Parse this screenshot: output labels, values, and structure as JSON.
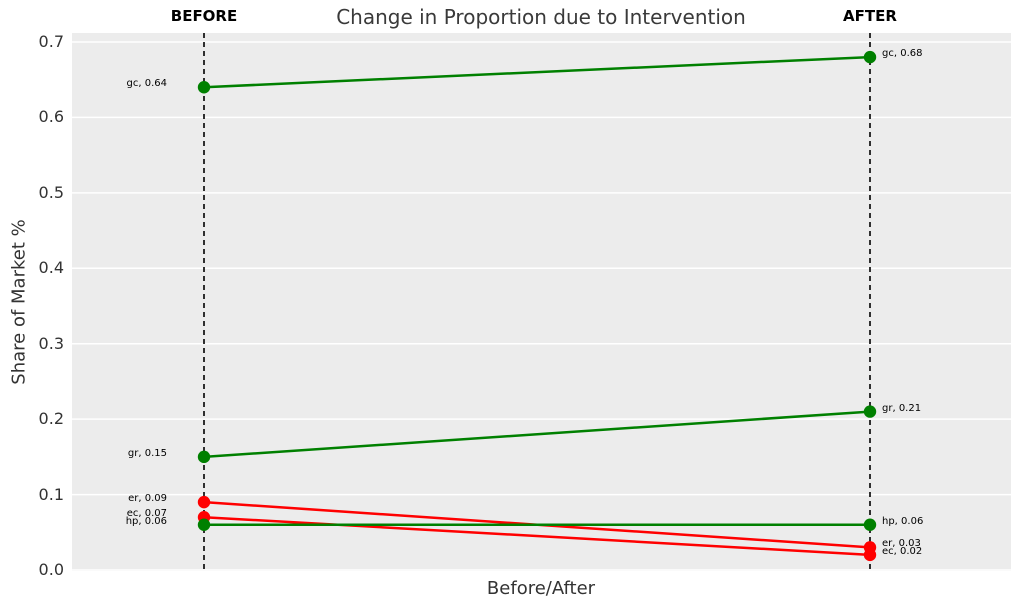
{
  "chart_data": {
    "type": "line",
    "subtype": "slope-chart",
    "title": "Change in Proportion due to Intervention",
    "xlabel": "Before/After",
    "ylabel": "Share of Market %",
    "x_categories": [
      "BEFORE",
      "AFTER"
    ],
    "ylim": [
      0.0,
      0.7
    ],
    "yticks": [
      0.0,
      0.1,
      0.2,
      0.3,
      0.4,
      0.5,
      0.6,
      0.7
    ],
    "grid": true,
    "legend": "none",
    "series": [
      {
        "name": "gc",
        "color": "#008000",
        "values": [
          0.64,
          0.68
        ],
        "labels": [
          "gc, 0.64",
          "gc, 0.68"
        ]
      },
      {
        "name": "gr",
        "color": "#008000",
        "values": [
          0.15,
          0.21
        ],
        "labels": [
          "gr, 0.15",
          "gr, 0.21"
        ]
      },
      {
        "name": "er",
        "color": "#ff0000",
        "values": [
          0.09,
          0.03
        ],
        "labels": [
          "er, 0.09",
          "er, 0.03"
        ]
      },
      {
        "name": "ec",
        "color": "#ff0000",
        "values": [
          0.07,
          0.02
        ],
        "labels": [
          "ec, 0.07",
          "ec, 0.02"
        ]
      },
      {
        "name": "hp",
        "color": "#008000",
        "values": [
          0.06,
          0.06
        ],
        "labels": [
          "hp, 0.06",
          "hp, 0.06"
        ]
      }
    ]
  },
  "style": {
    "plot_background": "#ececec",
    "grid_color": "#ffffff",
    "dashed_line_color": "#000000",
    "green": "#008000",
    "red": "#ff0000",
    "title_color": "#3a3a3a",
    "axis_text_color": "#333333",
    "annotation_color": "#000000"
  }
}
